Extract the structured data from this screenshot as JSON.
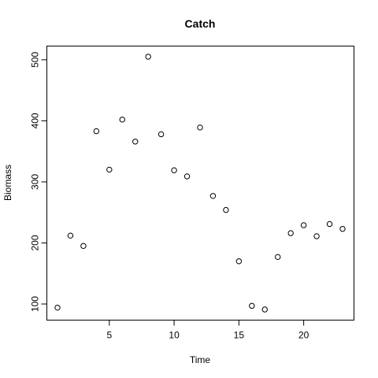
{
  "chart_data": {
    "type": "scatter",
    "title": "Catch",
    "xlabel": "Time",
    "ylabel": "Biomass",
    "xlim": [
      1,
      23
    ],
    "ylim": [
      91,
      505
    ],
    "x_ticks": [
      5,
      10,
      15,
      20
    ],
    "y_ticks": [
      100,
      200,
      300,
      400,
      500
    ],
    "grid": false,
    "legend": "none",
    "marker": "open-circle",
    "points": [
      {
        "x": 1,
        "y": 94
      },
      {
        "x": 2,
        "y": 212
      },
      {
        "x": 3,
        "y": 195
      },
      {
        "x": 4,
        "y": 383
      },
      {
        "x": 5,
        "y": 320
      },
      {
        "x": 6,
        "y": 402
      },
      {
        "x": 7,
        "y": 366
      },
      {
        "x": 8,
        "y": 505
      },
      {
        "x": 9,
        "y": 378
      },
      {
        "x": 10,
        "y": 319
      },
      {
        "x": 11,
        "y": 309
      },
      {
        "x": 12,
        "y": 389
      },
      {
        "x": 13,
        "y": 277
      },
      {
        "x": 14,
        "y": 254
      },
      {
        "x": 15,
        "y": 170
      },
      {
        "x": 16,
        "y": 97
      },
      {
        "x": 17,
        "y": 91
      },
      {
        "x": 18,
        "y": 177
      },
      {
        "x": 19,
        "y": 216
      },
      {
        "x": 20,
        "y": 229
      },
      {
        "x": 21,
        "y": 211
      },
      {
        "x": 22,
        "y": 231
      },
      {
        "x": 23,
        "y": 223
      }
    ]
  }
}
